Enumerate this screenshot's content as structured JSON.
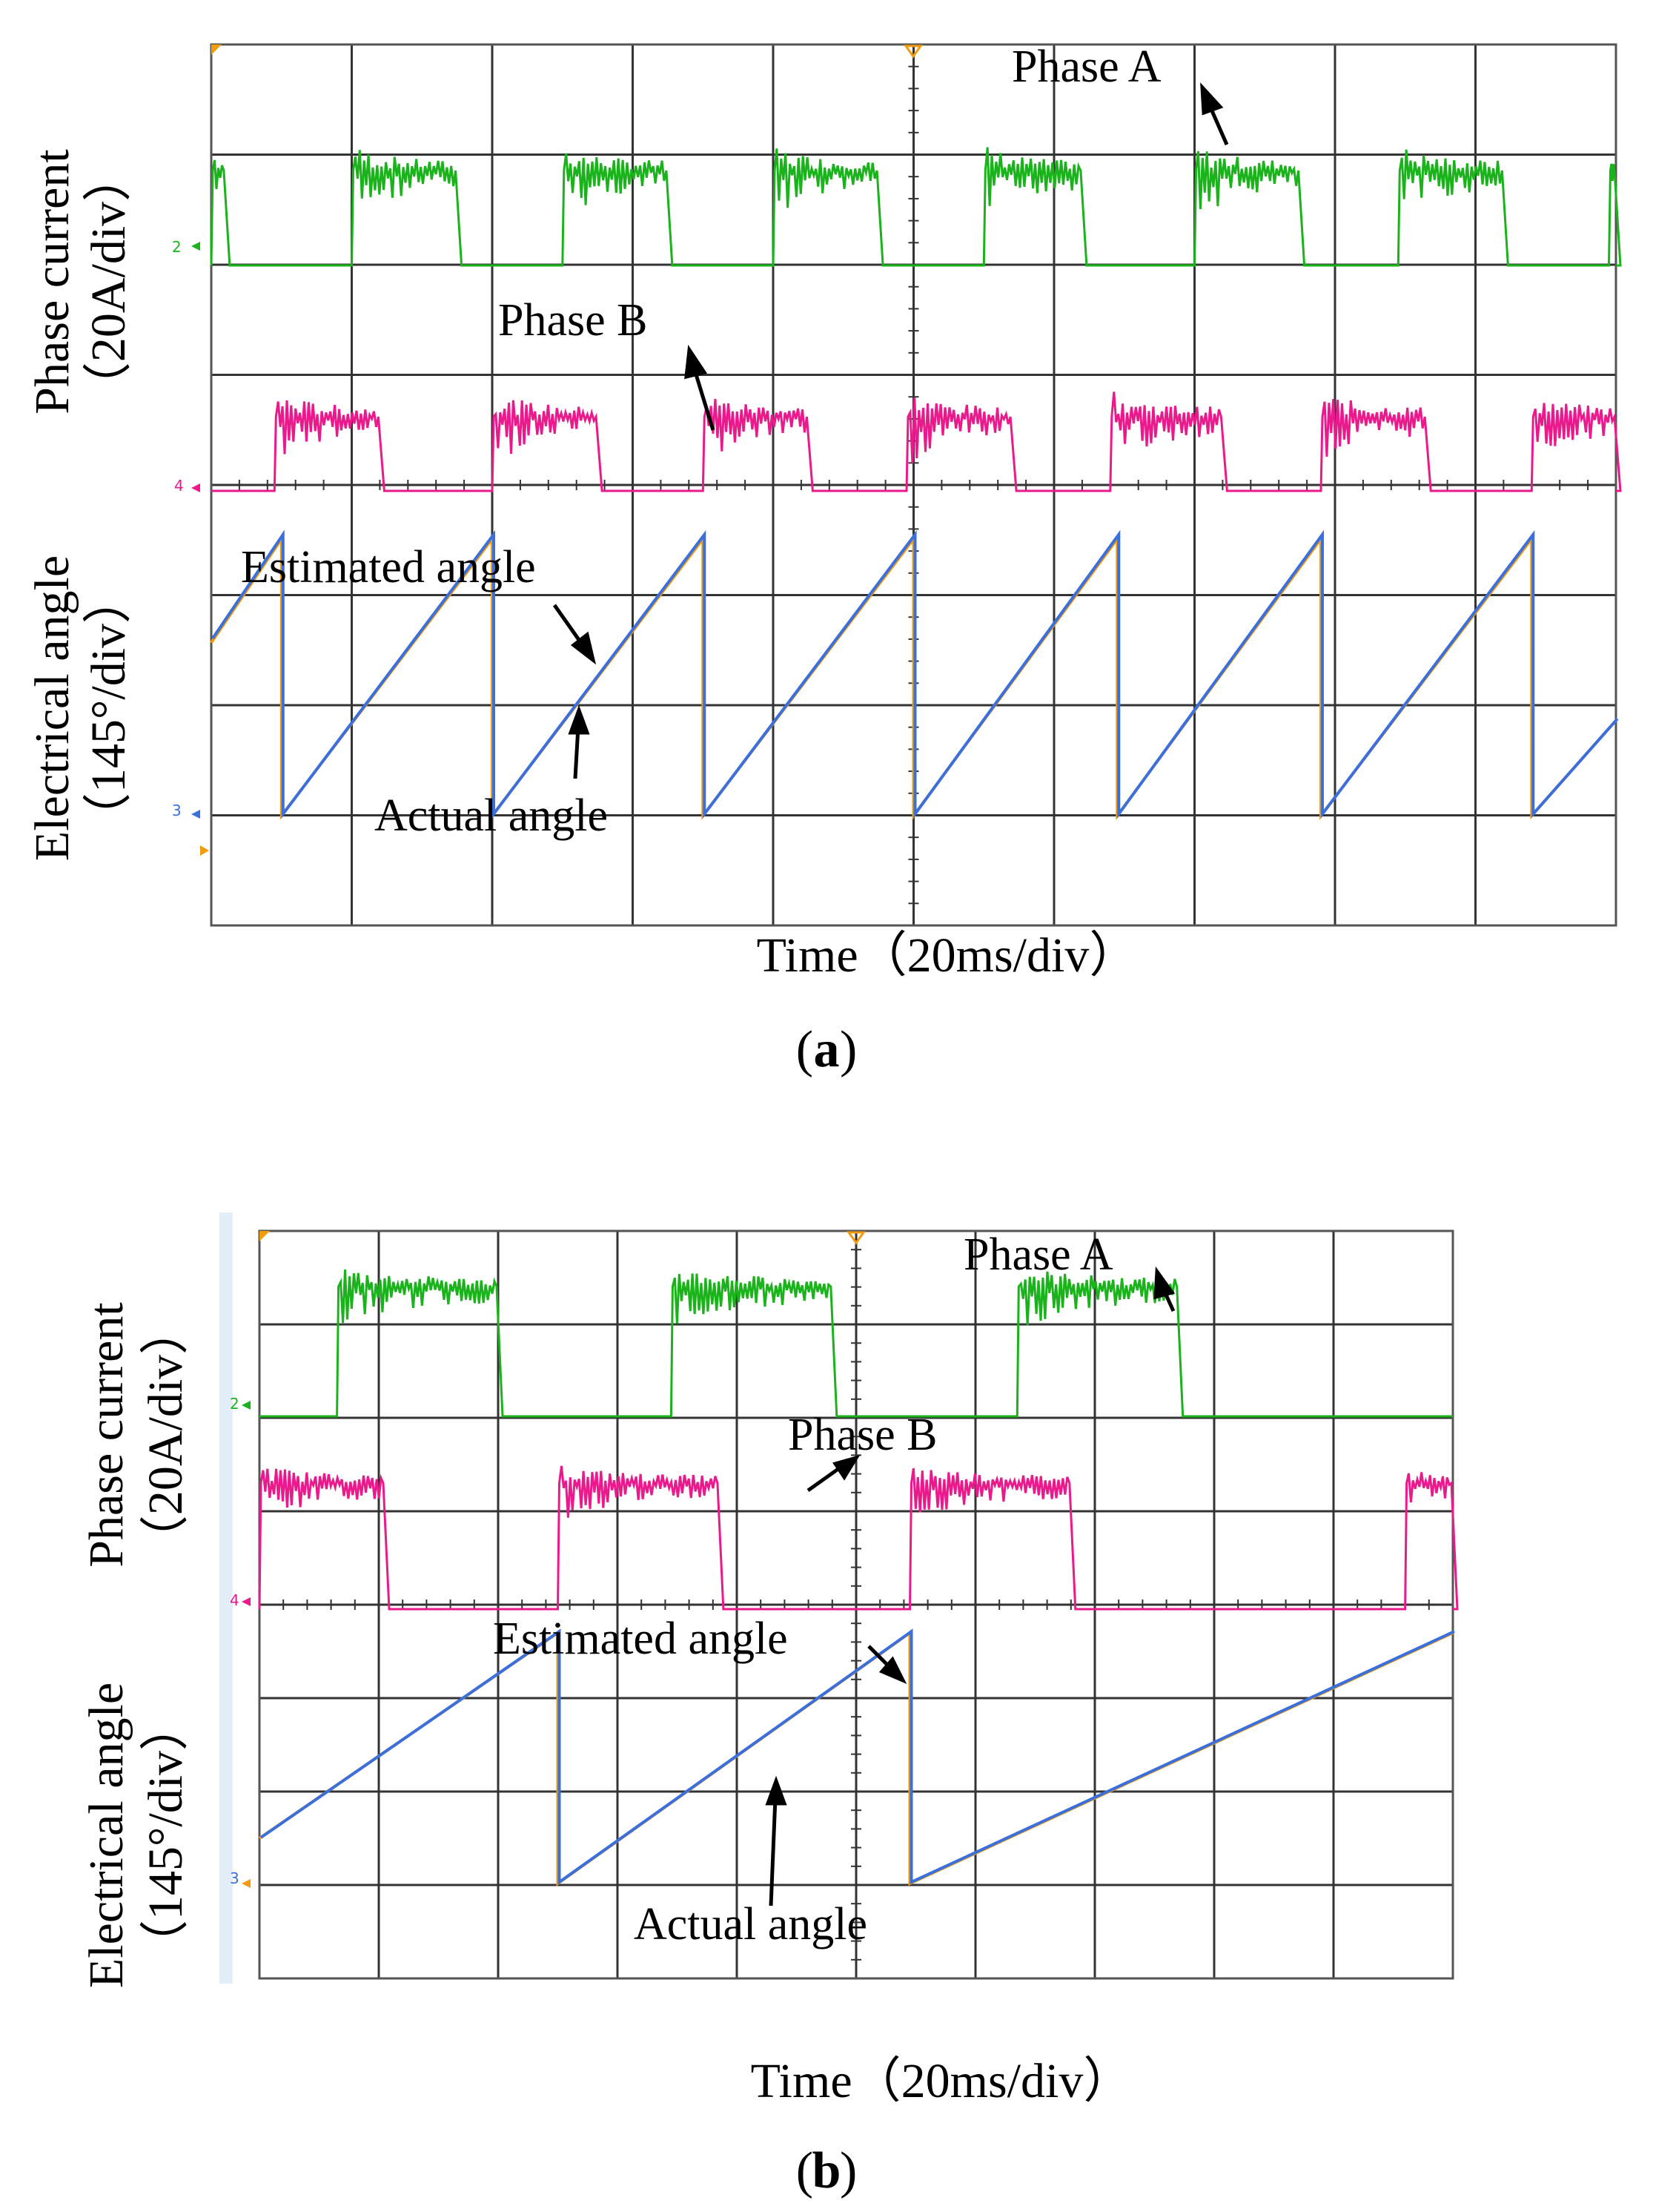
{
  "colors": {
    "phase_a": "#1bb31b",
    "phase_b": "#ea1a8d",
    "estimated": "#3b6fdc",
    "actual": "#f29b0c",
    "grid": "#333333"
  },
  "chart_data": [
    {
      "type": "line",
      "panel": "a",
      "caption_letter": "a",
      "caption_open": "(",
      "caption_close": ")",
      "xlabel": "Time（20ms/div）",
      "ylabel_current": "Phase current",
      "ylabel_current_unit": "（20A/div）",
      "ylabel_angle": "Electrical angle",
      "ylabel_angle_unit": "（145°/div）",
      "x_divisions": 10,
      "y_divisions": 8,
      "time_per_div_ms": 20,
      "xlim_ms": [
        0,
        200
      ],
      "angle_range_deg": [
        0,
        360
      ],
      "ch_markers": {
        "ch2": "2",
        "ch4": "4",
        "ch3": "3"
      },
      "annotations": {
        "phase_a": "Phase A",
        "phase_b": "Phase B",
        "estimated": "Estimated angle",
        "actual": "Actual angle"
      },
      "series": [
        {
          "name": "Phase A current",
          "kind": "square",
          "high_intervals_ms": [
            [
              -4,
              2
            ],
            [
              20,
              35
            ],
            [
              50,
              65
            ],
            [
              80,
              95
            ],
            [
              110,
              124
            ],
            [
              140,
              155
            ],
            [
              169,
              184
            ],
            [
              199,
              200
            ]
          ],
          "amplitude_div": 0.85
        },
        {
          "name": "Phase B current",
          "kind": "square",
          "high_intervals_ms": [
            [
              9,
              24
            ],
            [
              40,
              55
            ],
            [
              70,
              85
            ],
            [
              99,
              114
            ],
            [
              128,
              144
            ],
            [
              158,
              173
            ],
            [
              188,
              200
            ]
          ],
          "amplitude_div": 0.85
        },
        {
          "name": "Actual angle",
          "kind": "sawtooth",
          "points_ms_deg": [
            [
              0,
              200
            ],
            [
              10,
              320
            ],
            [
              10,
              0
            ],
            [
              40,
              320
            ],
            [
              40,
              0
            ],
            [
              70,
              320
            ],
            [
              70,
              0
            ],
            [
              100,
              320
            ],
            [
              100,
              0
            ],
            [
              129,
              320
            ],
            [
              129,
              0
            ],
            [
              158,
              320
            ],
            [
              158,
              0
            ],
            [
              188,
              320
            ],
            [
              188,
              0
            ],
            [
              200,
              110
            ]
          ]
        },
        {
          "name": "Estimated angle",
          "kind": "sawtooth",
          "points_ms_deg": [
            [
              0,
              205
            ],
            [
              10,
              325
            ],
            [
              10,
              2
            ],
            [
              40,
              325
            ],
            [
              40,
              2
            ],
            [
              70,
              325
            ],
            [
              70,
              2
            ],
            [
              100,
              325
            ],
            [
              100,
              2
            ],
            [
              129,
              325
            ],
            [
              129,
              2
            ],
            [
              158,
              325
            ],
            [
              158,
              2
            ],
            [
              188,
              325
            ],
            [
              188,
              2
            ],
            [
              200,
              112
            ]
          ]
        }
      ]
    },
    {
      "type": "line",
      "panel": "b",
      "caption_letter": "b",
      "caption_open": "(",
      "caption_close": ")",
      "xlabel": "Time（20ms/div）",
      "ylabel_current": "Phase current",
      "ylabel_current_unit": "（20A/div）",
      "ylabel_angle": "Electrical angle",
      "ylabel_angle_unit": "（145°/div）",
      "x_divisions": 10,
      "y_divisions": 8,
      "time_per_div_ms": 20,
      "xlim_ms": [
        0,
        200
      ],
      "angle_range_deg": [
        0,
        360
      ],
      "ch_markers": {
        "ch2": "2",
        "ch4": "4",
        "ch3": "3"
      },
      "annotations": {
        "phase_a": "Phase A",
        "phase_b": "Phase B",
        "estimated": "Estimated angle",
        "actual": "Actual angle"
      },
      "series": [
        {
          "name": "Phase A current",
          "kind": "square",
          "high_intervals_ms": [
            [
              13,
              40
            ],
            [
              69,
              96
            ],
            [
              127,
              154
            ]
          ],
          "amplitude_div": 1.35
        },
        {
          "name": "Phase B current",
          "kind": "square",
          "high_intervals_ms": [
            [
              -4,
              21
            ],
            [
              50,
              77
            ],
            [
              109,
              136
            ],
            [
              192,
              200
            ]
          ],
          "amplitude_div": 1.35
        },
        {
          "name": "Actual angle",
          "kind": "sawtooth",
          "points_ms_deg": [
            [
              0,
              65
            ],
            [
              50,
              360
            ],
            [
              50,
              0
            ],
            [
              109,
              360
            ],
            [
              109,
              0
            ],
            [
              200,
              360
            ]
          ]
        },
        {
          "name": "Estimated angle",
          "kind": "sawtooth",
          "points_ms_deg": [
            [
              0,
              66
            ],
            [
              50,
              362
            ],
            [
              50,
              2
            ],
            [
              109,
              362
            ],
            [
              109,
              2
            ],
            [
              200,
              362
            ]
          ]
        }
      ]
    }
  ]
}
